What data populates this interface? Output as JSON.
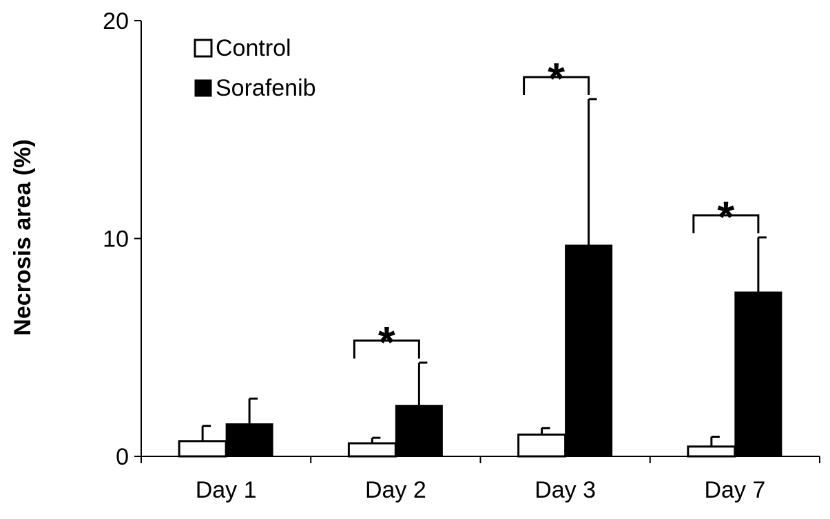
{
  "chart_data": {
    "type": "bar",
    "title": "",
    "xlabel": "",
    "ylabel": "Necrosis area (%)",
    "ylim": [
      0,
      20
    ],
    "yticks": [
      "0",
      "10",
      "20"
    ],
    "categories": [
      "Day 1",
      "Day 2",
      "Day 3",
      "Day 7"
    ],
    "series": [
      {
        "name": "Control",
        "color": "#ffffff",
        "values": [
          0.7,
          0.6,
          1.0,
          0.45
        ],
        "errors": [
          0.7,
          0.25,
          0.3,
          0.45
        ]
      },
      {
        "name": "Sorafenib",
        "color": "#000000",
        "values": [
          1.5,
          2.35,
          9.7,
          7.55
        ],
        "errors": [
          1.15,
          1.95,
          6.7,
          2.5
        ]
      }
    ],
    "significance": [
      {
        "category": "Day 1",
        "label": ""
      },
      {
        "category": "Day 2",
        "label": "*"
      },
      {
        "category": "Day 3",
        "label": "*"
      },
      {
        "category": "Day 7",
        "label": "*"
      }
    ],
    "legend_position": "top-left",
    "grid": false
  }
}
